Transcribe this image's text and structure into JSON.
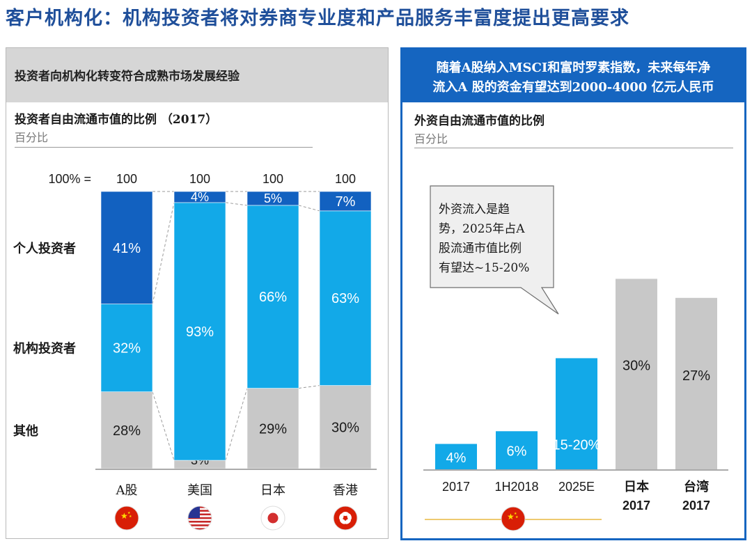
{
  "page": {
    "title": "客户机构化：机构投资者将对券商专业度和产品服务丰富度提出更高要求"
  },
  "left_panel": {
    "header": "投资者向机构化转变符合成熟市场发展经验",
    "subtitle": "投资者自由流通市值的比例 （2017）",
    "unit": "百分比"
  },
  "right_panel": {
    "header_line1": "随着A股纳入MSCI和富时罗素指数，未来每年净",
    "header_line2": "流入A 股的资金有望达到2000-4000 亿元人民币",
    "subtitle": "外资自由流通市值的比例",
    "unit": "百分比",
    "callout": [
      "外资流入是趋",
      "势，2025年占A",
      "股流通市值比例",
      "有望达~15-20%"
    ]
  },
  "colors": {
    "dark_blue": "#1261c0",
    "light_blue": "#12a9e8",
    "gray": "#c8c8c8",
    "header_blue": "#1565c0",
    "china_red": "#d81e06",
    "gold": "#e8b840"
  },
  "chart_data": [
    {
      "type": "bar",
      "stacked": true,
      "title": "投资者自由流通市值的比例 （2017）",
      "ylabel": "百分比",
      "total_label": "100% =",
      "categories": [
        "A股",
        "美国",
        "日本",
        "香港"
      ],
      "totals": [
        100,
        100,
        100,
        100
      ],
      "flags": [
        "china-flag-icon",
        "usa-flag-icon",
        "japan-flag-icon",
        "hongkong-flag-icon"
      ],
      "series": [
        {
          "name": "其他",
          "color": "#c8c8c8",
          "values": [
            28,
            3,
            29,
            30
          ],
          "labels": [
            "28%",
            "3%",
            "29%",
            "30%"
          ]
        },
        {
          "name": "机构投资者",
          "color": "#12a9e8",
          "values": [
            32,
            93,
            66,
            63
          ],
          "labels": [
            "32%",
            "93%",
            "66%",
            "63%"
          ]
        },
        {
          "name": "个人投资者",
          "color": "#1261c0",
          "values": [
            41,
            4,
            5,
            7
          ],
          "labels": [
            "41%",
            "4%",
            "5%",
            "7%"
          ]
        }
      ],
      "ylim": [
        0,
        100
      ]
    },
    {
      "type": "bar",
      "title": "外资自由流通市值的比例",
      "ylabel": "百分比",
      "categories": [
        "2017",
        "1H2018",
        "2025E",
        "日本 2017",
        "台湾 2017"
      ],
      "category_lines": [
        [
          "2017"
        ],
        [
          "1H2018"
        ],
        [
          "2025E"
        ],
        [
          "日本",
          "2017"
        ],
        [
          "台湾",
          "2017"
        ]
      ],
      "values": [
        4,
        6,
        17.5,
        30,
        27
      ],
      "labels": [
        "4%",
        "6%",
        "15-20%",
        "30%",
        "27%"
      ],
      "colors": [
        "#12a9e8",
        "#12a9e8",
        "#12a9e8",
        "#c8c8c8",
        "#c8c8c8"
      ],
      "ylim": [
        0,
        42
      ]
    }
  ]
}
